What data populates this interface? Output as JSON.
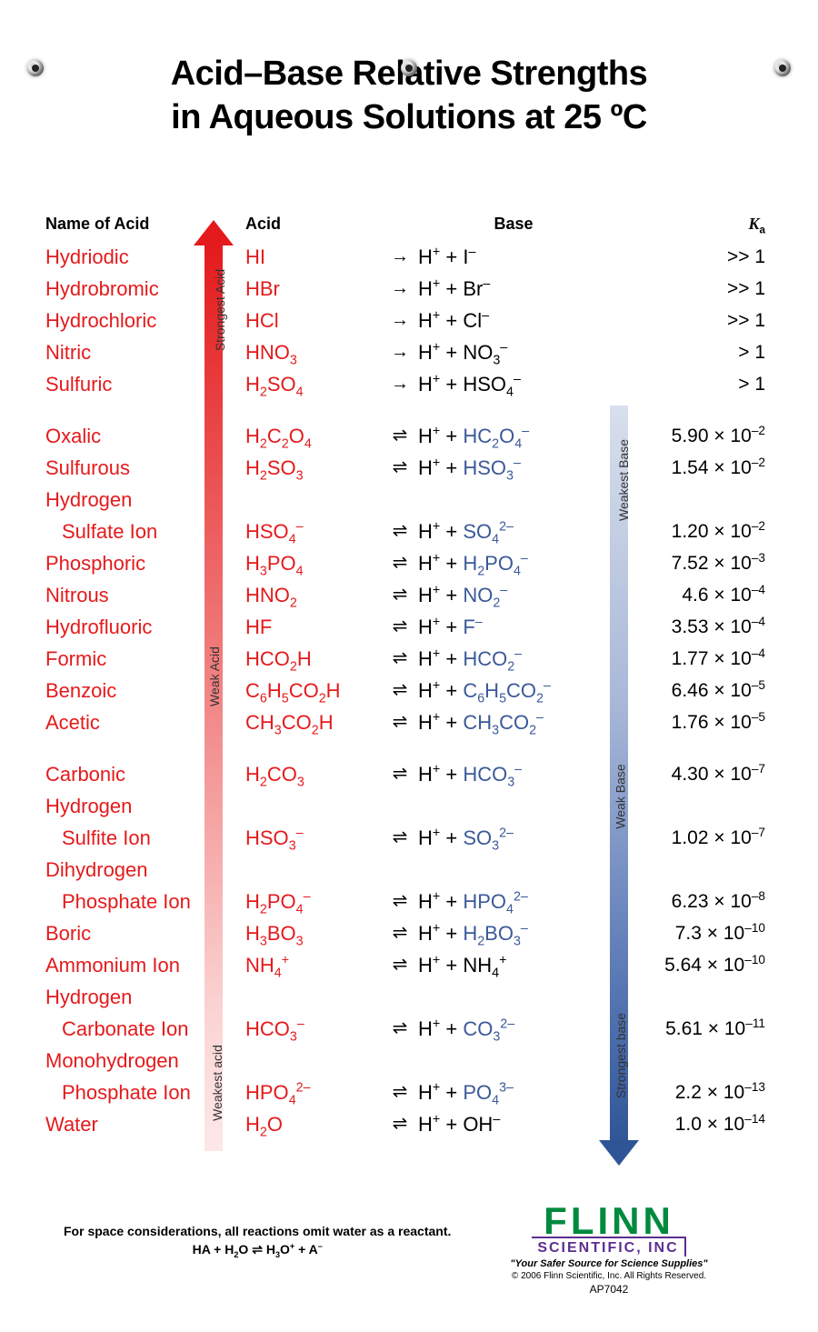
{
  "title_line1": "Acid–Base Relative Strengths",
  "title_line2": "in Aqueous Solutions at 25 ºC",
  "headers": {
    "name": "Name of Acid",
    "acid": "Acid",
    "base": "Base",
    "ka_k": "K",
    "ka_sub": "a"
  },
  "acid_labels": {
    "strongest": "Strongest Acid",
    "weak": "Weak Acid",
    "weakest": "Weakest acid"
  },
  "base_labels": {
    "weakest": "Weakest Base",
    "weak": "Weak Base",
    "strongest": "Strongest base"
  },
  "groups": [
    [
      {
        "name": "Hydriodic",
        "acid": "HI",
        "arrow": "→",
        "base": "H<sup>+</sup> + I<sup>–</sup>",
        "ka": ">> 1"
      },
      {
        "name": "Hydrobromic",
        "acid": "HBr",
        "arrow": "→",
        "base": "H<sup>+</sup> + Br<sup>–</sup>",
        "ka": ">> 1"
      },
      {
        "name": "Hydrochloric",
        "acid": "HCl",
        "arrow": "→",
        "base": "H<sup>+</sup> + Cl<sup>–</sup>",
        "ka": ">> 1"
      },
      {
        "name": "Nitric",
        "acid": "HNO<sub>3</sub>",
        "arrow": "→",
        "base": "H<sup>+</sup> + NO<sub>3</sub><sup>–</sup>",
        "ka": "> 1"
      },
      {
        "name": "Sulfuric",
        "acid": "H<sub>2</sub>SO<sub>4</sub>",
        "arrow": "→",
        "base": "H<sup>+</sup> + HSO<sub>4</sub><sup>–</sup>",
        "ka": "> 1"
      }
    ],
    [
      {
        "name": "Oxalic",
        "acid": "H<sub>2</sub>C<sub>2</sub>O<sub>4</sub>",
        "arrow": "⇌",
        "base": "H<sup>+</sup> + <span class='base-ion'>HC<sub>2</sub>O<sub>4</sub><sup>–</sup></span>",
        "ka": "5.90 × 10<sup>–2</sup>"
      },
      {
        "name": "Sulfurous",
        "acid": "H<sub>2</sub>SO<sub>3</sub>",
        "arrow": "⇌",
        "base": "H<sup>+</sup> + <span class='base-ion'>HSO<sub>3</sub><sup>–</sup></span>",
        "ka": "1.54 × 10<sup>–2</sup>"
      },
      {
        "name": "Hydrogen",
        "name2": "Sulfate Ion",
        "acid": "HSO<sub>4</sub><sup>–</sup>",
        "arrow": "⇌",
        "base": "H<sup>+</sup> + <span class='base-ion'>SO<sub>4</sub><sup>2–</sup></span>",
        "ka": "1.20 × 10<sup>–2</sup>"
      },
      {
        "name": "Phosphoric",
        "acid": "H<sub>3</sub>PO<sub>4</sub>",
        "arrow": "⇌",
        "base": "H<sup>+</sup> + <span class='base-ion'>H<sub>2</sub>PO<sub>4</sub><sup>–</sup></span>",
        "ka": "7.52 × 10<sup>–3</sup>"
      },
      {
        "name": "Nitrous",
        "acid": "HNO<sub>2</sub>",
        "arrow": "⇌",
        "base": "H<sup>+</sup> + <span class='base-ion'>NO<sub>2</sub><sup>–</sup></span>",
        "ka": "4.6 × 10<sup>–4</sup>"
      },
      {
        "name": "Hydrofluoric",
        "acid": "HF",
        "arrow": "⇌",
        "base": "H<sup>+</sup> + <span class='base-ion'>F<sup>–</sup></span>",
        "ka": "3.53 × 10<sup>–4</sup>"
      },
      {
        "name": "Formic",
        "acid": "HCO<sub>2</sub>H",
        "arrow": "⇌",
        "base": "H<sup>+</sup> + <span class='base-ion'>HCO<sub>2</sub><sup>–</sup></span>",
        "ka": "1.77 × 10<sup>–4</sup>"
      },
      {
        "name": "Benzoic",
        "acid": "C<sub>6</sub>H<sub>5</sub>CO<sub>2</sub>H",
        "arrow": "⇌",
        "base": "H<sup>+</sup> + <span class='base-ion'>C<sub>6</sub>H<sub>5</sub>CO<sub>2</sub><sup>–</sup></span>",
        "ka": "6.46 × 10<sup>–5</sup>"
      },
      {
        "name": "Acetic",
        "acid": "CH<sub>3</sub>CO<sub>2</sub>H",
        "arrow": "⇌",
        "base": "H<sup>+</sup> + <span class='base-ion'>CH<sub>3</sub>CO<sub>2</sub><sup>–</sup></span>",
        "ka": "1.76 × 10<sup>–5</sup>"
      }
    ],
    [
      {
        "name": "Carbonic",
        "acid": "H<sub>2</sub>CO<sub>3</sub>",
        "arrow": "⇌",
        "base": "H<sup>+</sup> + <span class='base-ion'>HCO<sub>3</sub><sup>–</sup></span>",
        "ka": "4.30 × 10<sup>–7</sup>"
      },
      {
        "name": "Hydrogen",
        "name2": "Sulfite Ion",
        "acid": "HSO<sub>3</sub><sup>–</sup>",
        "arrow": "⇌",
        "base": "H<sup>+</sup> + <span class='base-ion'>SO<sub>3</sub><sup>2–</sup></span>",
        "ka": "1.02 × 10<sup>–7</sup>"
      },
      {
        "name": "Dihydrogen",
        "name2": "Phosphate Ion",
        "acid": "H<sub>2</sub>PO<sub>4</sub><sup>–</sup>",
        "arrow": "⇌",
        "base": "H<sup>+</sup> + <span class='base-ion'>HPO<sub>4</sub><sup>2–</sup></span>",
        "ka": "6.23 × 10<sup>–8</sup>"
      },
      {
        "name": "Boric",
        "acid": "H<sub>3</sub>BO<sub>3</sub>",
        "arrow": "⇌",
        "base": "H<sup>+</sup> + <span class='base-ion'>H<sub>2</sub>BO<sub>3</sub><sup>–</sup></span>",
        "ka": "7.3 × 10<sup>–10</sup>"
      },
      {
        "name": "Ammonium Ion",
        "acid": "NH<sub>4</sub><sup>+</sup>",
        "arrow": "⇌",
        "base": "H<sup>+</sup> + NH<sub>4</sub><sup>+</sup>",
        "ka": "5.64 × 10<sup>–10</sup>"
      },
      {
        "name": "Hydrogen",
        "name2": "Carbonate Ion",
        "acid": "HCO<sub>3</sub><sup>–</sup>",
        "arrow": "⇌",
        "base": "H<sup>+</sup> + <span class='base-ion'>CO<sub>3</sub><sup>2–</sup></span>",
        "ka": "5.61 × 10<sup>–11</sup>"
      },
      {
        "name": "Monohydrogen",
        "name2": "Phosphate Ion",
        "acid": "HPO<sub>4</sub><sup>2–</sup>",
        "arrow": "⇌",
        "base": "H<sup>+</sup> + <span class='base-ion'>PO<sub>4</sub><sup>3–</sup></span>",
        "ka": "2.2 × 10<sup>–13</sup>"
      },
      {
        "name": "Water",
        "acid": "H<sub>2</sub>O",
        "arrow": "⇌",
        "base": "H<sup>+</sup> + OH<sup>–</sup>",
        "ka": "1.0 × 10<sup>–14</sup>"
      }
    ]
  ],
  "footnote": "For space considerations, all reactions omit water as a reactant.",
  "footnote_eq": "HA + H<sub>2</sub>O ⇌ H<sub>3</sub>O<sup>+</sup> + A<sup>–</sup>",
  "logo": {
    "brand": "FLINN",
    "sub": "SCIENTIFIC, INC",
    "tag": "\"Your Safer Source for Science Supplies\"",
    "copy": "© 2006 Flinn Scientific, Inc. All Rights Reserved.",
    "sku": "AP7042"
  }
}
